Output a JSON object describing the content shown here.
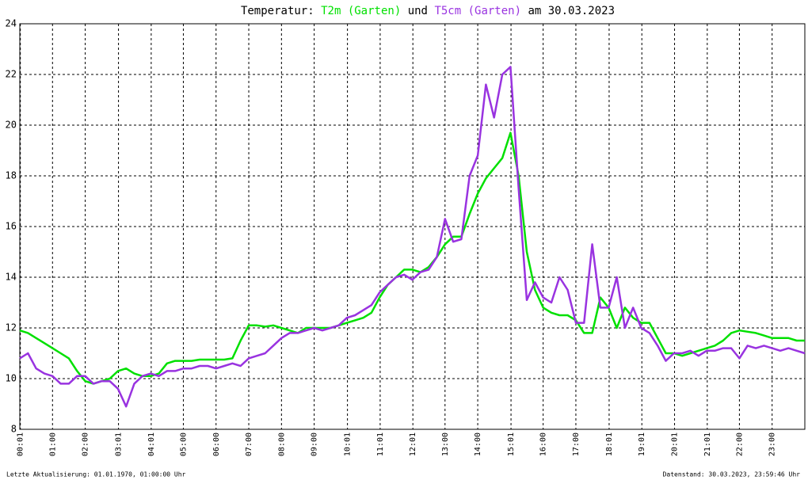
{
  "chart_data": {
    "type": "line",
    "title_parts": [
      "Temperatur:",
      "und",
      "am 30.03.2023"
    ],
    "footer_left": "Letzte Aktualisierung: 01.01.1970, 01:00:00 Uhr",
    "footer_right": "Datenstand: 30.03.2023, 23:59:46 Uhr",
    "x": [
      0,
      0.25,
      0.5,
      0.75,
      1,
      1.25,
      1.5,
      1.75,
      2,
      2.25,
      2.5,
      2.75,
      3,
      3.25,
      3.5,
      3.75,
      4,
      4.25,
      4.5,
      4.75,
      5,
      5.25,
      5.5,
      5.75,
      6,
      6.25,
      6.5,
      6.75,
      7,
      7.25,
      7.5,
      7.75,
      8,
      8.25,
      8.5,
      8.75,
      9,
      9.25,
      9.5,
      9.75,
      10,
      10.25,
      10.5,
      10.75,
      11,
      11.25,
      11.5,
      11.75,
      12,
      12.25,
      12.5,
      12.75,
      13,
      13.25,
      13.5,
      13.75,
      14,
      14.25,
      14.5,
      14.75,
      15,
      15.25,
      15.5,
      15.75,
      16,
      16.25,
      16.5,
      16.75,
      17,
      17.25,
      17.5,
      17.75,
      18,
      18.25,
      18.5,
      18.75,
      19,
      19.25,
      19.5,
      19.75,
      20,
      20.25,
      20.5,
      20.75,
      21,
      21.25,
      21.5,
      21.75,
      22,
      22.25,
      22.5,
      22.75,
      23,
      23.25,
      23.5,
      23.75,
      24
    ],
    "series": [
      {
        "name": "T2m (Garten)",
        "color": "#00e000",
        "values": [
          11.9,
          11.8,
          11.6,
          11.4,
          11.2,
          11.0,
          10.8,
          10.3,
          9.9,
          9.8,
          9.9,
          10.0,
          10.3,
          10.4,
          10.2,
          10.1,
          10.1,
          10.2,
          10.6,
          10.7,
          10.7,
          10.7,
          10.75,
          10.75,
          10.75,
          10.75,
          10.8,
          11.5,
          12.1,
          12.1,
          12.05,
          12.1,
          12.0,
          11.9,
          11.8,
          12.0,
          12.0,
          12.0,
          12.0,
          12.1,
          12.2,
          12.3,
          12.4,
          12.6,
          13.2,
          13.7,
          14.0,
          14.3,
          14.3,
          14.2,
          14.4,
          14.8,
          15.3,
          15.6,
          15.6,
          16.5,
          17.3,
          17.9,
          18.3,
          18.7,
          19.7,
          18.0,
          15.0,
          13.5,
          12.8,
          12.6,
          12.5,
          12.5,
          12.3,
          11.8,
          11.8,
          13.2,
          12.8,
          12.0,
          12.8,
          12.4,
          12.2,
          12.2,
          11.6,
          11.0,
          11.0,
          10.9,
          11.0,
          11.1,
          11.2,
          11.3,
          11.5,
          11.8,
          11.9,
          11.85,
          11.8,
          11.7,
          11.6,
          11.6,
          11.6,
          11.5,
          11.5
        ]
      },
      {
        "name": "T5cm (Garten)",
        "color": "#9933e0",
        "values": [
          10.8,
          11.0,
          10.4,
          10.2,
          10.1,
          9.8,
          9.8,
          10.1,
          10.1,
          9.8,
          9.9,
          9.9,
          9.6,
          8.9,
          9.8,
          10.1,
          10.2,
          10.1,
          10.3,
          10.3,
          10.4,
          10.4,
          10.5,
          10.5,
          10.4,
          10.5,
          10.6,
          10.5,
          10.8,
          10.9,
          11.0,
          11.3,
          11.6,
          11.8,
          11.8,
          11.9,
          12.0,
          11.9,
          12.0,
          12.1,
          12.4,
          12.5,
          12.7,
          12.9,
          13.4,
          13.7,
          14.0,
          14.1,
          13.9,
          14.2,
          14.3,
          14.8,
          16.3,
          15.4,
          15.5,
          18.0,
          18.8,
          21.6,
          20.3,
          22.0,
          22.3,
          17.5,
          13.1,
          13.8,
          13.2,
          13.0,
          14.0,
          13.5,
          12.2,
          12.2,
          15.3,
          12.8,
          12.8,
          14.0,
          12.0,
          12.8,
          12.0,
          11.8,
          11.3,
          10.7,
          11.0,
          11.0,
          11.1,
          10.9,
          11.1,
          11.1,
          11.2,
          11.2,
          10.8,
          11.3,
          11.2,
          11.3,
          11.2,
          11.1,
          11.2,
          11.1,
          11.0
        ]
      }
    ],
    "xlim": [
      0,
      24
    ],
    "xticks": [
      {
        "value": 0.017,
        "label": "00:01"
      },
      {
        "value": 1,
        "label": "01:00"
      },
      {
        "value": 2,
        "label": "02:00"
      },
      {
        "value": 3.017,
        "label": "03:01"
      },
      {
        "value": 4.017,
        "label": "04:01"
      },
      {
        "value": 5,
        "label": "05:00"
      },
      {
        "value": 6,
        "label": "06:00"
      },
      {
        "value": 7,
        "label": "07:00"
      },
      {
        "value": 8,
        "label": "08:00"
      },
      {
        "value": 9,
        "label": "09:00"
      },
      {
        "value": 10.017,
        "label": "10:01"
      },
      {
        "value": 11.017,
        "label": "11:01"
      },
      {
        "value": 12.017,
        "label": "12:01"
      },
      {
        "value": 13,
        "label": "13:00"
      },
      {
        "value": 14,
        "label": "14:00"
      },
      {
        "value": 15.017,
        "label": "15:01"
      },
      {
        "value": 16,
        "label": "16:00"
      },
      {
        "value": 17,
        "label": "17:00"
      },
      {
        "value": 18.017,
        "label": "18:01"
      },
      {
        "value": 19.017,
        "label": "19:01"
      },
      {
        "value": 20.017,
        "label": "20:01"
      },
      {
        "value": 21.017,
        "label": "21:01"
      },
      {
        "value": 22,
        "label": "22:00"
      },
      {
        "value": 23,
        "label": "23:00"
      }
    ],
    "ylim": [
      8,
      24
    ],
    "yticks": [
      8,
      10,
      12,
      14,
      16,
      18,
      20,
      22,
      24
    ],
    "grid": true
  }
}
